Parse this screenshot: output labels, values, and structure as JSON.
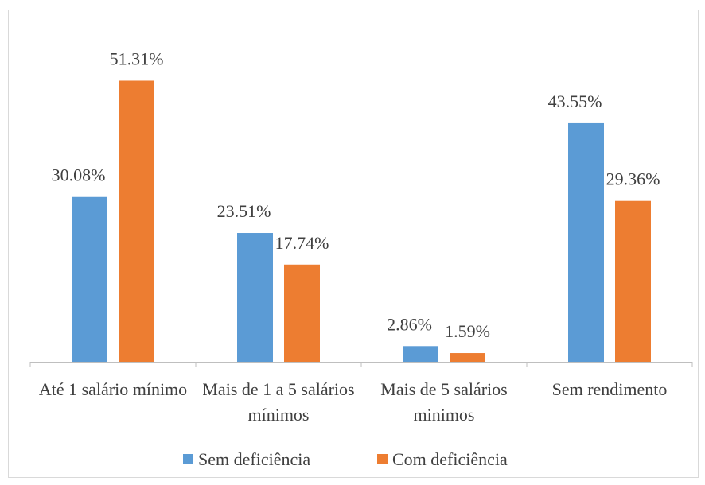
{
  "chart_data": {
    "type": "bar",
    "categories": [
      "Até 1 salário mínimo",
      "Mais de 1 a 5 salários mínimos",
      "Mais de 5 salários minimos",
      "Sem rendimento"
    ],
    "series": [
      {
        "name": "Sem deficiência",
        "color": "#5b9bd5",
        "values": [
          30.08,
          23.51,
          2.86,
          43.55
        ],
        "value_labels": [
          "30.08%",
          "23.51%",
          "2.86%",
          "43.55%"
        ]
      },
      {
        "name": "Com deficiência",
        "color": "#ed7d31",
        "values": [
          51.31,
          17.74,
          1.59,
          29.36
        ],
        "value_labels": [
          "51.31%",
          "17.74%",
          "1.59%",
          "29.36%"
        ]
      }
    ],
    "legend": "bottom"
  }
}
